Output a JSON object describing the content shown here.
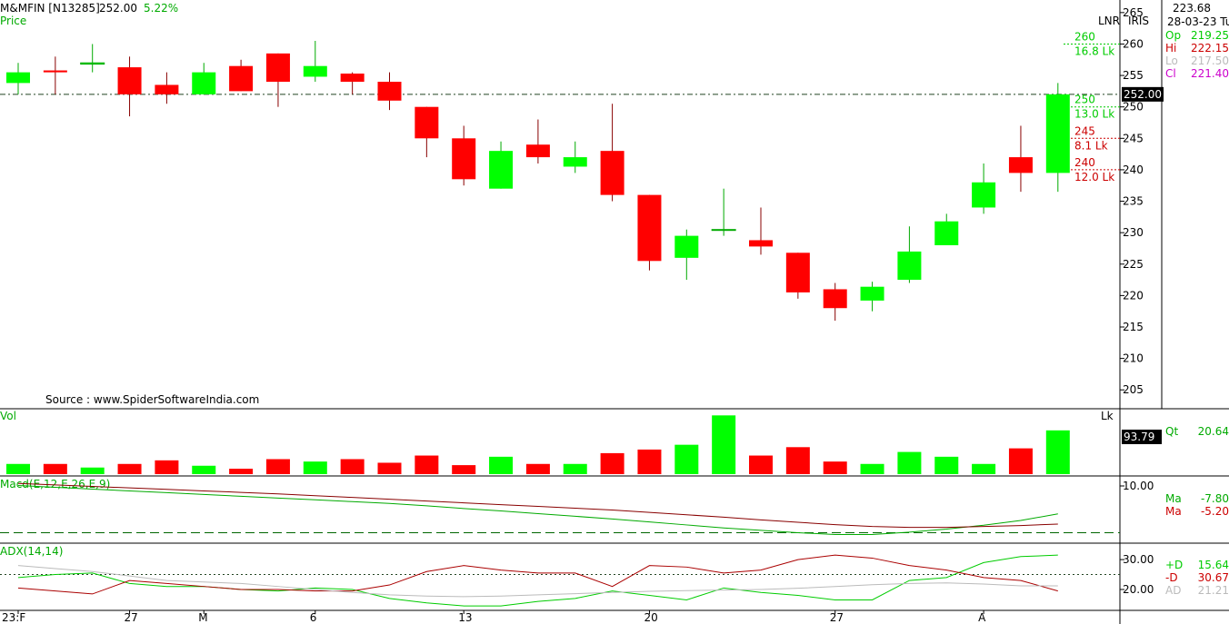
{
  "header": {
    "symbol": "M&MFIN [N13285]",
    "last_price": "252.00",
    "change_pct": "5.22%",
    "price_label": "Price",
    "source": "Source : www.SpiderSoftwareIndia.com",
    "tag_lnr": "LNR",
    "tag_iris": "IRIS"
  },
  "info_box": {
    "value": "223.68",
    "date": "28-03-23 Tu",
    "rows": [
      {
        "label": "Op",
        "value": "219.25",
        "color": "#00cc00"
      },
      {
        "label": "Hi",
        "value": "222.15",
        "color": "#cc0000"
      },
      {
        "label": "Lo",
        "value": "217.50",
        "color": "#bbbbbb"
      },
      {
        "label": "Cl",
        "value": "221.40",
        "color": "#cc00cc"
      }
    ]
  },
  "colors": {
    "up": "#00ff00",
    "down": "#ff0000",
    "up_line": "#00aa00",
    "down_line": "#880000"
  },
  "chart_data": [
    {
      "type": "candlestick",
      "panel": "price",
      "ylim": [
        202,
        267
      ],
      "yticks": [
        205,
        210,
        215,
        220,
        225,
        230,
        235,
        240,
        245,
        250,
        255,
        260,
        265
      ],
      "x_labels": [
        "23:F",
        "27",
        "M",
        "6",
        "13",
        "20",
        "27",
        "A"
      ],
      "current_price": 252.0,
      "current_price_label": "252.00",
      "reference_line": 252,
      "candles": [
        {
          "o": 253.8,
          "h": 257.0,
          "l": 252.0,
          "c": 255.5
        },
        {
          "o": 255.8,
          "h": 258.0,
          "l": 252.0,
          "c": 255.5
        },
        {
          "o": 256.8,
          "h": 260.0,
          "l": 255.5,
          "c": 257.0
        },
        {
          "o": 256.3,
          "h": 258.0,
          "l": 248.5,
          "c": 252.0
        },
        {
          "o": 253.5,
          "h": 255.5,
          "l": 250.5,
          "c": 252.0
        },
        {
          "o": 252.0,
          "h": 257.0,
          "l": 252.0,
          "c": 255.5
        },
        {
          "o": 256.5,
          "h": 257.5,
          "l": 252.5,
          "c": 252.5
        },
        {
          "o": 258.5,
          "h": 258.5,
          "l": 250.0,
          "c": 254.0
        },
        {
          "o": 254.8,
          "h": 260.5,
          "l": 254.0,
          "c": 256.5
        },
        {
          "o": 255.3,
          "h": 255.5,
          "l": 252.0,
          "c": 254.0
        },
        {
          "o": 254.0,
          "h": 255.5,
          "l": 249.5,
          "c": 251.0
        },
        {
          "o": 250.0,
          "h": 250.0,
          "l": 242.0,
          "c": 245.0
        },
        {
          "o": 245.0,
          "h": 247.0,
          "l": 237.5,
          "c": 238.5
        },
        {
          "o": 237.0,
          "h": 244.5,
          "l": 237.0,
          "c": 243.0
        },
        {
          "o": 244.0,
          "h": 248.0,
          "l": 241.0,
          "c": 242.0
        },
        {
          "o": 240.5,
          "h": 244.5,
          "l": 239.5,
          "c": 242.0
        },
        {
          "o": 243.0,
          "h": 250.5,
          "l": 235.0,
          "c": 236.0
        },
        {
          "o": 236.0,
          "h": 236.0,
          "l": 224.0,
          "c": 225.5
        },
        {
          "o": 226.0,
          "h": 230.5,
          "l": 222.5,
          "c": 229.5
        },
        {
          "o": 230.5,
          "h": 237.0,
          "l": 229.5,
          "c": 230.5
        },
        {
          "o": 228.8,
          "h": 234.0,
          "l": 226.5,
          "c": 227.8
        },
        {
          "o": 226.8,
          "h": 226.8,
          "l": 219.5,
          "c": 220.5
        },
        {
          "o": 221.0,
          "h": 222.0,
          "l": 216.0,
          "c": 218.0
        },
        {
          "o": 219.2,
          "h": 222.2,
          "l": 217.5,
          "c": 221.4
        },
        {
          "o": 222.5,
          "h": 231.0,
          "l": 222.0,
          "c": 227.0
        },
        {
          "o": 228.0,
          "h": 233.0,
          "l": 228.0,
          "c": 231.8
        },
        {
          "o": 234.0,
          "h": 241.0,
          "l": 233.0,
          "c": 238.0
        },
        {
          "o": 242.0,
          "h": 247.0,
          "l": 236.5,
          "c": 239.5
        },
        {
          "o": 239.5,
          "h": 253.8,
          "l": 236.5,
          "c": 252.0
        }
      ],
      "levels": [
        {
          "price": 260,
          "price_label": "260",
          "vol_label": "16.8 Lk",
          "color": "#00cc00"
        },
        {
          "price": 250,
          "price_label": "250",
          "vol_label": "13.0 Lk",
          "color": "#00cc00"
        },
        {
          "price": 245,
          "price_label": "245",
          "vol_label": "8.1 Lk",
          "color": "#cc0000"
        },
        {
          "price": 240,
          "price_label": "240",
          "vol_label": "12.0 Lk",
          "color": "#cc0000"
        }
      ]
    },
    {
      "type": "bar",
      "panel": "volume",
      "label": "Vol",
      "unit": "Lk",
      "ylim": [
        0,
        100
      ],
      "current_label": "93.79",
      "qt_label": "Qt",
      "qt_value": "20.64",
      "values": [
        17,
        17,
        11,
        17,
        23,
        14,
        9,
        25,
        21,
        25,
        19,
        31,
        15,
        29,
        17,
        17,
        35,
        41,
        49,
        98,
        31,
        45,
        21,
        17,
        37,
        29,
        17,
        43,
        73
      ]
    },
    {
      "type": "line",
      "panel": "macd",
      "label": "Macd(E,12,E,26,E,9)",
      "ytick_label": "10.00",
      "reference_value": -7.0,
      "ylim": [
        -10.5,
        12
      ],
      "legend": [
        {
          "label": "Ma",
          "value": "-7.80",
          "color": "#00aa00"
        },
        {
          "label": "Ma",
          "value": "-5.20",
          "color": "#cc0000"
        }
      ],
      "series": [
        {
          "color": "#00aa00",
          "values": [
            8.8,
            8.2,
            7.6,
            7.0,
            6.4,
            5.8,
            5.2,
            4.6,
            4.0,
            3.4,
            2.8,
            2.0,
            1.1,
            0.3,
            -0.6,
            -1.5,
            -2.4,
            -3.4,
            -4.4,
            -5.4,
            -6.2,
            -7.0,
            -7.6,
            -7.6,
            -6.8,
            -5.8,
            -4.5,
            -2.9,
            -0.7
          ]
        },
        {
          "color": "#880000",
          "values": [
            9.5,
            9.0,
            8.5,
            8.0,
            7.5,
            7.0,
            6.5,
            6.0,
            5.4,
            4.8,
            4.2,
            3.6,
            3.0,
            2.4,
            1.8,
            1.2,
            0.6,
            -0.2,
            -1.0,
            -1.8,
            -2.7,
            -3.5,
            -4.3,
            -4.9,
            -5.2,
            -5.2,
            -4.9,
            -4.6,
            -4.1
          ]
        }
      ]
    },
    {
      "type": "line",
      "panel": "adx",
      "label": "ADX(14,14)",
      "yticks": [
        20,
        30
      ],
      "ytick_labels": [
        "20.00",
        "30.00"
      ],
      "reference_value": 25,
      "ylim": [
        13,
        35.5
      ],
      "legend": [
        {
          "label": "+D",
          "value": "15.64",
          "color": "#00cc00"
        },
        {
          "label": "-D",
          "value": "30.67",
          "color": "#cc0000"
        },
        {
          "label": "AD",
          "value": "21.21",
          "color": "#bbbbbb"
        }
      ],
      "series": [
        {
          "name": "+D",
          "color": "#00cc00",
          "values": [
            24,
            25,
            25.5,
            22,
            21,
            21,
            20,
            19.5,
            20.5,
            20,
            17,
            15.5,
            14.5,
            14.5,
            16,
            17,
            19.5,
            18,
            16.5,
            20.5,
            19,
            18,
            16.5,
            16.5,
            23,
            24,
            29,
            31,
            31.5
          ]
        },
        {
          "name": "-D",
          "color": "#aa0000",
          "values": [
            20.5,
            19.5,
            18.5,
            23,
            22,
            21,
            20,
            20,
            19.5,
            19.5,
            21.5,
            26,
            28,
            26.5,
            25.5,
            25.5,
            21,
            28,
            27.5,
            25.5,
            26.5,
            30,
            31.5,
            30.5,
            28,
            26.5,
            24,
            23,
            19.5
          ]
        },
        {
          "name": "AD",
          "color": "#bbbbbb",
          "values": [
            28,
            27,
            26,
            24.5,
            23,
            22.5,
            22,
            21,
            20,
            19,
            18.2,
            17.8,
            17.6,
            17.8,
            18.2,
            18.6,
            19,
            19.4,
            19.6,
            19.8,
            20,
            20.4,
            21,
            21.6,
            22,
            22.2,
            21.8,
            21.2,
            21.2
          ]
        }
      ]
    }
  ]
}
